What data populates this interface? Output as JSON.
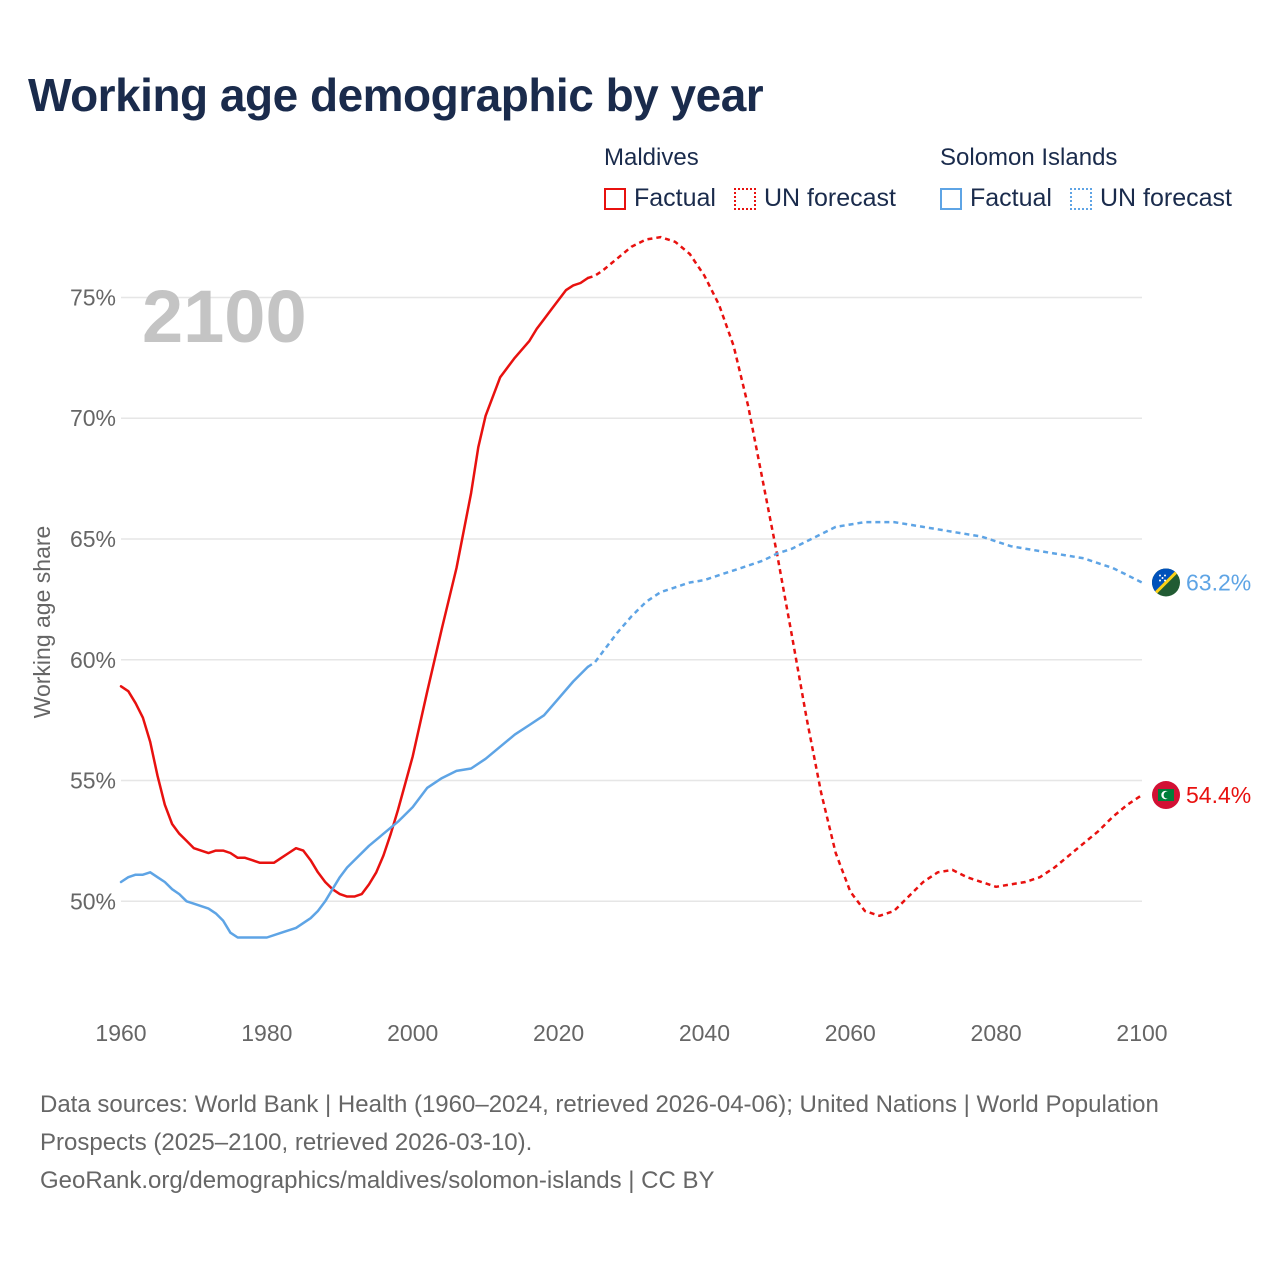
{
  "title": "Working age demographic by year",
  "legend": [
    {
      "country": "Maldives",
      "factual": "Factual",
      "forecast": "UN forecast",
      "color": "#e8110f"
    },
    {
      "country": "Solomon Islands",
      "factual": "Factual",
      "forecast": "UN forecast",
      "color": "#5ea4e5"
    }
  ],
  "chart_data": {
    "type": "line",
    "year_label": "2100",
    "ylabel": "Working age share",
    "xlim": [
      1960,
      2100
    ],
    "ylim": [
      45.5,
      78
    ],
    "x_ticks": [
      "1960",
      "1980",
      "2000",
      "2020",
      "2040",
      "2060",
      "2080",
      "2100"
    ],
    "y_ticks": [
      {
        "value": 50,
        "label": "50%"
      },
      {
        "value": 55,
        "label": "55%"
      },
      {
        "value": 60,
        "label": "60%"
      },
      {
        "value": 65,
        "label": "65%"
      },
      {
        "value": 70,
        "label": "70%"
      },
      {
        "value": 75,
        "label": "75%"
      }
    ],
    "series": [
      {
        "name": "Maldives",
        "color": "#e8110f",
        "end_label": "54.4%",
        "end_value": 54.4,
        "factual": {
          "x": [
            1960,
            1961,
            1962,
            1963,
            1964,
            1965,
            1966,
            1967,
            1968,
            1969,
            1970,
            1972,
            1973,
            1974,
            1975,
            1976,
            1977,
            1978,
            1979,
            1980,
            1981,
            1982,
            1983,
            1984,
            1985,
            1986,
            1987,
            1988,
            1989,
            1990,
            1991,
            1992,
            1993,
            1994,
            1995,
            1996,
            1997,
            1998,
            1999,
            2000,
            2002,
            2004,
            2006,
            2008,
            2009,
            2010,
            2012,
            2014,
            2016,
            2017,
            2018,
            2019,
            2020,
            2021,
            2022,
            2023,
            2024
          ],
          "y": [
            58.9,
            58.7,
            58.2,
            57.6,
            56.6,
            55.2,
            54.0,
            53.2,
            52.8,
            52.5,
            52.2,
            52.0,
            52.1,
            52.1,
            52.0,
            51.8,
            51.8,
            51.7,
            51.6,
            51.6,
            51.6,
            51.8,
            52.0,
            52.2,
            52.1,
            51.7,
            51.2,
            50.8,
            50.5,
            50.3,
            50.2,
            50.2,
            50.3,
            50.7,
            51.2,
            51.9,
            52.8,
            53.8,
            54.9,
            56.0,
            58.7,
            61.3,
            63.8,
            66.9,
            68.8,
            70.1,
            71.7,
            72.5,
            73.2,
            73.7,
            74.1,
            74.5,
            74.9,
            75.3,
            75.5,
            75.6,
            75.8
          ]
        },
        "forecast": {
          "x": [
            2024,
            2025,
            2026,
            2028,
            2030,
            2032,
            2034,
            2036,
            2038,
            2040,
            2042,
            2044,
            2046,
            2048,
            2050,
            2052,
            2054,
            2056,
            2058,
            2060,
            2062,
            2064,
            2066,
            2068,
            2070,
            2072,
            2074,
            2076,
            2078,
            2080,
            2082,
            2084,
            2086,
            2088,
            2090,
            2092,
            2094,
            2096,
            2098,
            2100
          ],
          "y": [
            75.8,
            75.9,
            76.1,
            76.6,
            77.1,
            77.4,
            77.5,
            77.3,
            76.8,
            75.9,
            74.7,
            73.0,
            70.5,
            67.4,
            64.3,
            61.0,
            57.6,
            54.5,
            52.0,
            50.4,
            49.6,
            49.4,
            49.6,
            50.2,
            50.8,
            51.2,
            51.3,
            51.0,
            50.8,
            50.6,
            50.7,
            50.8,
            51.0,
            51.4,
            51.9,
            52.4,
            52.9,
            53.5,
            54.0,
            54.4
          ]
        }
      },
      {
        "name": "Solomon Islands",
        "color": "#5ea4e5",
        "end_label": "63.2%",
        "end_value": 63.2,
        "factual": {
          "x": [
            1960,
            1961,
            1962,
            1963,
            1964,
            1965,
            1966,
            1967,
            1968,
            1969,
            1970,
            1972,
            1973,
            1974,
            1975,
            1976,
            1977,
            1978,
            1979,
            1980,
            1982,
            1984,
            1986,
            1987,
            1988,
            1989,
            1990,
            1991,
            1992,
            1994,
            1996,
            1998,
            2000,
            2002,
            2004,
            2006,
            2008,
            2010,
            2012,
            2014,
            2016,
            2018,
            2020,
            2022,
            2024
          ],
          "y": [
            50.8,
            51.0,
            51.1,
            51.1,
            51.2,
            51.0,
            50.8,
            50.5,
            50.3,
            50.0,
            49.9,
            49.7,
            49.5,
            49.2,
            48.7,
            48.5,
            48.5,
            48.5,
            48.5,
            48.5,
            48.7,
            48.9,
            49.3,
            49.6,
            50.0,
            50.5,
            51.0,
            51.4,
            51.7,
            52.3,
            52.8,
            53.3,
            53.9,
            54.7,
            55.1,
            55.4,
            55.5,
            55.9,
            56.4,
            56.9,
            57.3,
            57.7,
            58.4,
            59.1,
            59.7
          ]
        },
        "forecast": {
          "x": [
            2024,
            2025,
            2026,
            2028,
            2030,
            2032,
            2034,
            2036,
            2038,
            2040,
            2042,
            2044,
            2046,
            2048,
            2050,
            2052,
            2054,
            2056,
            2058,
            2060,
            2062,
            2064,
            2066,
            2068,
            2070,
            2072,
            2074,
            2076,
            2078,
            2080,
            2082,
            2084,
            2086,
            2088,
            2090,
            2092,
            2094,
            2096,
            2098,
            2100
          ],
          "y": [
            59.7,
            59.9,
            60.3,
            61.1,
            61.8,
            62.4,
            62.8,
            63.0,
            63.2,
            63.3,
            63.5,
            63.7,
            63.9,
            64.1,
            64.4,
            64.6,
            64.9,
            65.2,
            65.5,
            65.6,
            65.7,
            65.7,
            65.7,
            65.6,
            65.5,
            65.4,
            65.3,
            65.2,
            65.1,
            64.9,
            64.7,
            64.6,
            64.5,
            64.4,
            64.3,
            64.2,
            64.0,
            63.8,
            63.5,
            63.2
          ]
        }
      }
    ]
  },
  "footer": {
    "sources": "Data sources: World Bank | Health (1960–2024, retrieved 2026-04-06); United Nations | World Population Prospects (2025–2100, retrieved 2026-03-10).",
    "credit": "GeoRank.org/demographics/maldives/solomon-islands | CC BY"
  }
}
